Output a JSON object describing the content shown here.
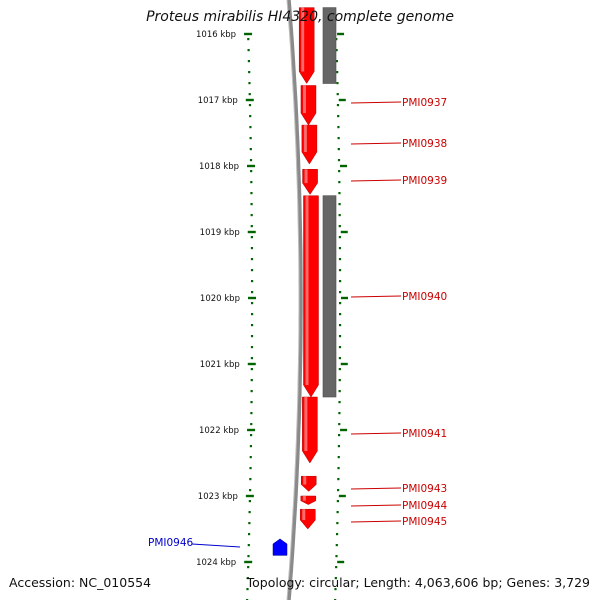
{
  "title": "Proteus mirabilis HI4320, complete genome",
  "footer": {
    "accession": "Accession: NC_010554",
    "summary": "Topology: circular; Length: 4,063,606 bp; Genes: 3,729"
  },
  "colors": {
    "forward_gene": "#ff0000",
    "reverse_gene": "#0000ff",
    "feature_bar": "#666666",
    "backbone": "#808080",
    "ticks": "#006400",
    "gene_label": "#cc0000",
    "reverse_label": "#0000cc"
  },
  "ruler": {
    "unit": "kbp",
    "ticks": [
      {
        "kbp": 1016,
        "label": "1016 kbp"
      },
      {
        "kbp": 1017,
        "label": "1017 kbp"
      },
      {
        "kbp": 1018,
        "label": "1018 kbp"
      },
      {
        "kbp": 1019,
        "label": "1019 kbp"
      },
      {
        "kbp": 1020,
        "label": "1020 kbp"
      },
      {
        "kbp": 1021,
        "label": "1021 kbp"
      },
      {
        "kbp": 1022,
        "label": "1022 kbp"
      },
      {
        "kbp": 1023,
        "label": "1023 kbp"
      },
      {
        "kbp": 1024,
        "label": "1024 kbp"
      }
    ]
  },
  "genes": [
    {
      "name": "",
      "strand": "+",
      "start_kbp": 1015.6,
      "end_kbp": 1016.75
    },
    {
      "name": "PMI0937",
      "strand": "+",
      "start_kbp": 1016.78,
      "end_kbp": 1017.38
    },
    {
      "name": "PMI0938",
      "strand": "+",
      "start_kbp": 1017.38,
      "end_kbp": 1017.97
    },
    {
      "name": "PMI0939",
      "strand": "+",
      "start_kbp": 1018.05,
      "end_kbp": 1018.43
    },
    {
      "name": "PMI0940",
      "strand": "+",
      "start_kbp": 1018.45,
      "end_kbp": 1021.5
    },
    {
      "name": "PMI0941",
      "strand": "+",
      "start_kbp": 1021.5,
      "end_kbp": 1022.5
    },
    {
      "name": "PMI0943",
      "strand": "+",
      "start_kbp": 1022.7,
      "end_kbp": 1022.93
    },
    {
      "name": "PMI0944",
      "strand": "+",
      "start_kbp": 1023.0,
      "end_kbp": 1023.13
    },
    {
      "name": "PMI0945",
      "strand": "+",
      "start_kbp": 1023.2,
      "end_kbp": 1023.5
    },
    {
      "name": "PMI0946",
      "strand": "-",
      "start_kbp": 1023.65,
      "end_kbp": 1023.9
    }
  ],
  "features": [
    {
      "start_kbp": 1015.6,
      "end_kbp": 1016.75
    },
    {
      "start_kbp": 1018.45,
      "end_kbp": 1021.5
    }
  ]
}
